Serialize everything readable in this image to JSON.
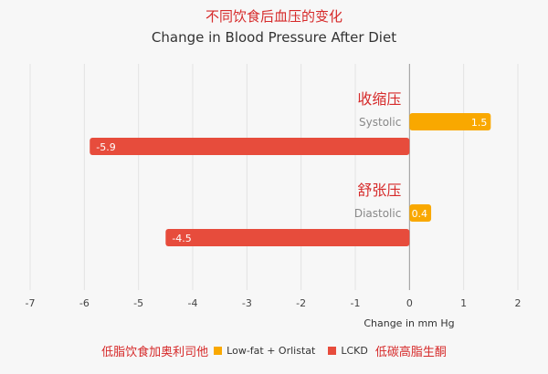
{
  "chart_data": {
    "type": "bar",
    "orientation": "horizontal",
    "title_cn": "不同饮食后血压的变化",
    "title": "Change in Blood Pressure After Diet",
    "xlabel": "Change in mm Hg",
    "xlim": [
      -7,
      2
    ],
    "xticks": [
      -7,
      -6,
      -5,
      -4,
      -3,
      -2,
      -1,
      0,
      1,
      2
    ],
    "grid": true,
    "legend_position": "bottom",
    "categories": [
      {
        "label": "Systolic",
        "label_cn": "收缩压"
      },
      {
        "label": "Diastolic",
        "label_cn": "舒张压"
      }
    ],
    "series": [
      {
        "name": "Low-fat + Orlistat",
        "name_cn": "低脂饮食加奥利司他",
        "color": "#f9a800",
        "values": [
          1.5,
          0.4
        ],
        "labels": [
          "1.5",
          "0.4"
        ]
      },
      {
        "name": "LCKD",
        "name_cn": "低碳高脂生酮",
        "color": "#e74c3c",
        "values": [
          -5.9,
          -4.5
        ],
        "labels": [
          "-5.9",
          "-4.5"
        ]
      }
    ],
    "annotation_color": "#d62a2a"
  }
}
